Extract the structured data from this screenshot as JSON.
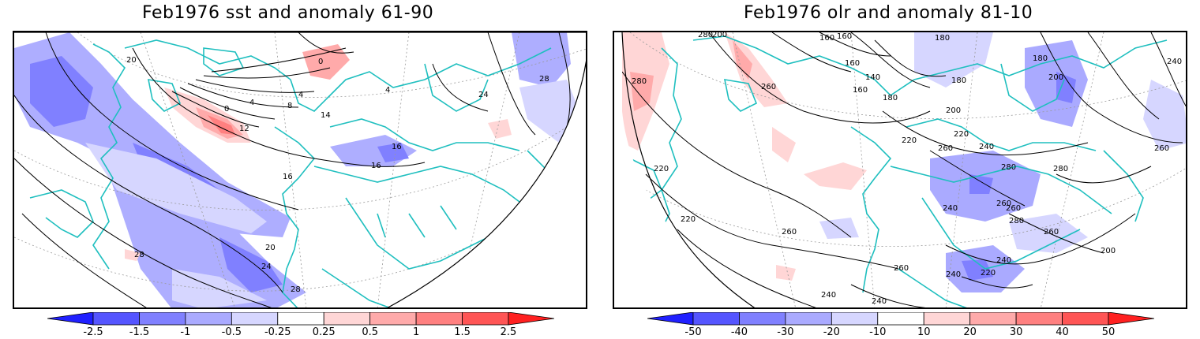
{
  "panels": [
    {
      "title": "Feb1976 sst and anomaly 61-90",
      "colorbar": {
        "labels": [
          "-2.5",
          "-1.5",
          "-1",
          "-0.5",
          "-0.25",
          "0.25",
          "0.5",
          "1",
          "1.5",
          "2.5"
        ],
        "colors": [
          "#2020ff",
          "#5555ff",
          "#8080ff",
          "#aaaaff",
          "#d6d6ff",
          "#ffffff",
          "#ffd6d6",
          "#ffaaaa",
          "#ff8080",
          "#ff5555",
          "#ff2020"
        ]
      },
      "contour_labels": [
        "20",
        "0",
        "4",
        "4",
        "8",
        "0",
        "12",
        "16",
        "16",
        "16",
        "24",
        "28",
        "20",
        "24",
        "28",
        "28",
        "14",
        "4"
      ]
    },
    {
      "title": "Feb1976 olr and anomaly 81-10",
      "colorbar": {
        "labels": [
          "-50",
          "-40",
          "-30",
          "-20",
          "-10",
          "10",
          "20",
          "30",
          "40",
          "50"
        ],
        "colors": [
          "#2020ff",
          "#5555ff",
          "#8080ff",
          "#aaaaff",
          "#d6d6ff",
          "#ffffff",
          "#ffd6d6",
          "#ffaaaa",
          "#ff8080",
          "#ff5555",
          "#ff2020"
        ]
      },
      "contour_labels": [
        "280",
        "200",
        "160",
        "160",
        "180",
        "160",
        "140",
        "160",
        "180",
        "200",
        "180",
        "240",
        "260",
        "280",
        "180",
        "200",
        "220",
        "220",
        "240",
        "260",
        "280",
        "280",
        "220",
        "260",
        "240",
        "260",
        "280",
        "260",
        "260",
        "200",
        "240",
        "220",
        "240",
        "260",
        "240",
        "240",
        "260",
        "220"
      ]
    }
  ],
  "colors": {
    "coastline": "#1fbfbf",
    "contour": "#000000",
    "grid": "#9a9a9a"
  }
}
